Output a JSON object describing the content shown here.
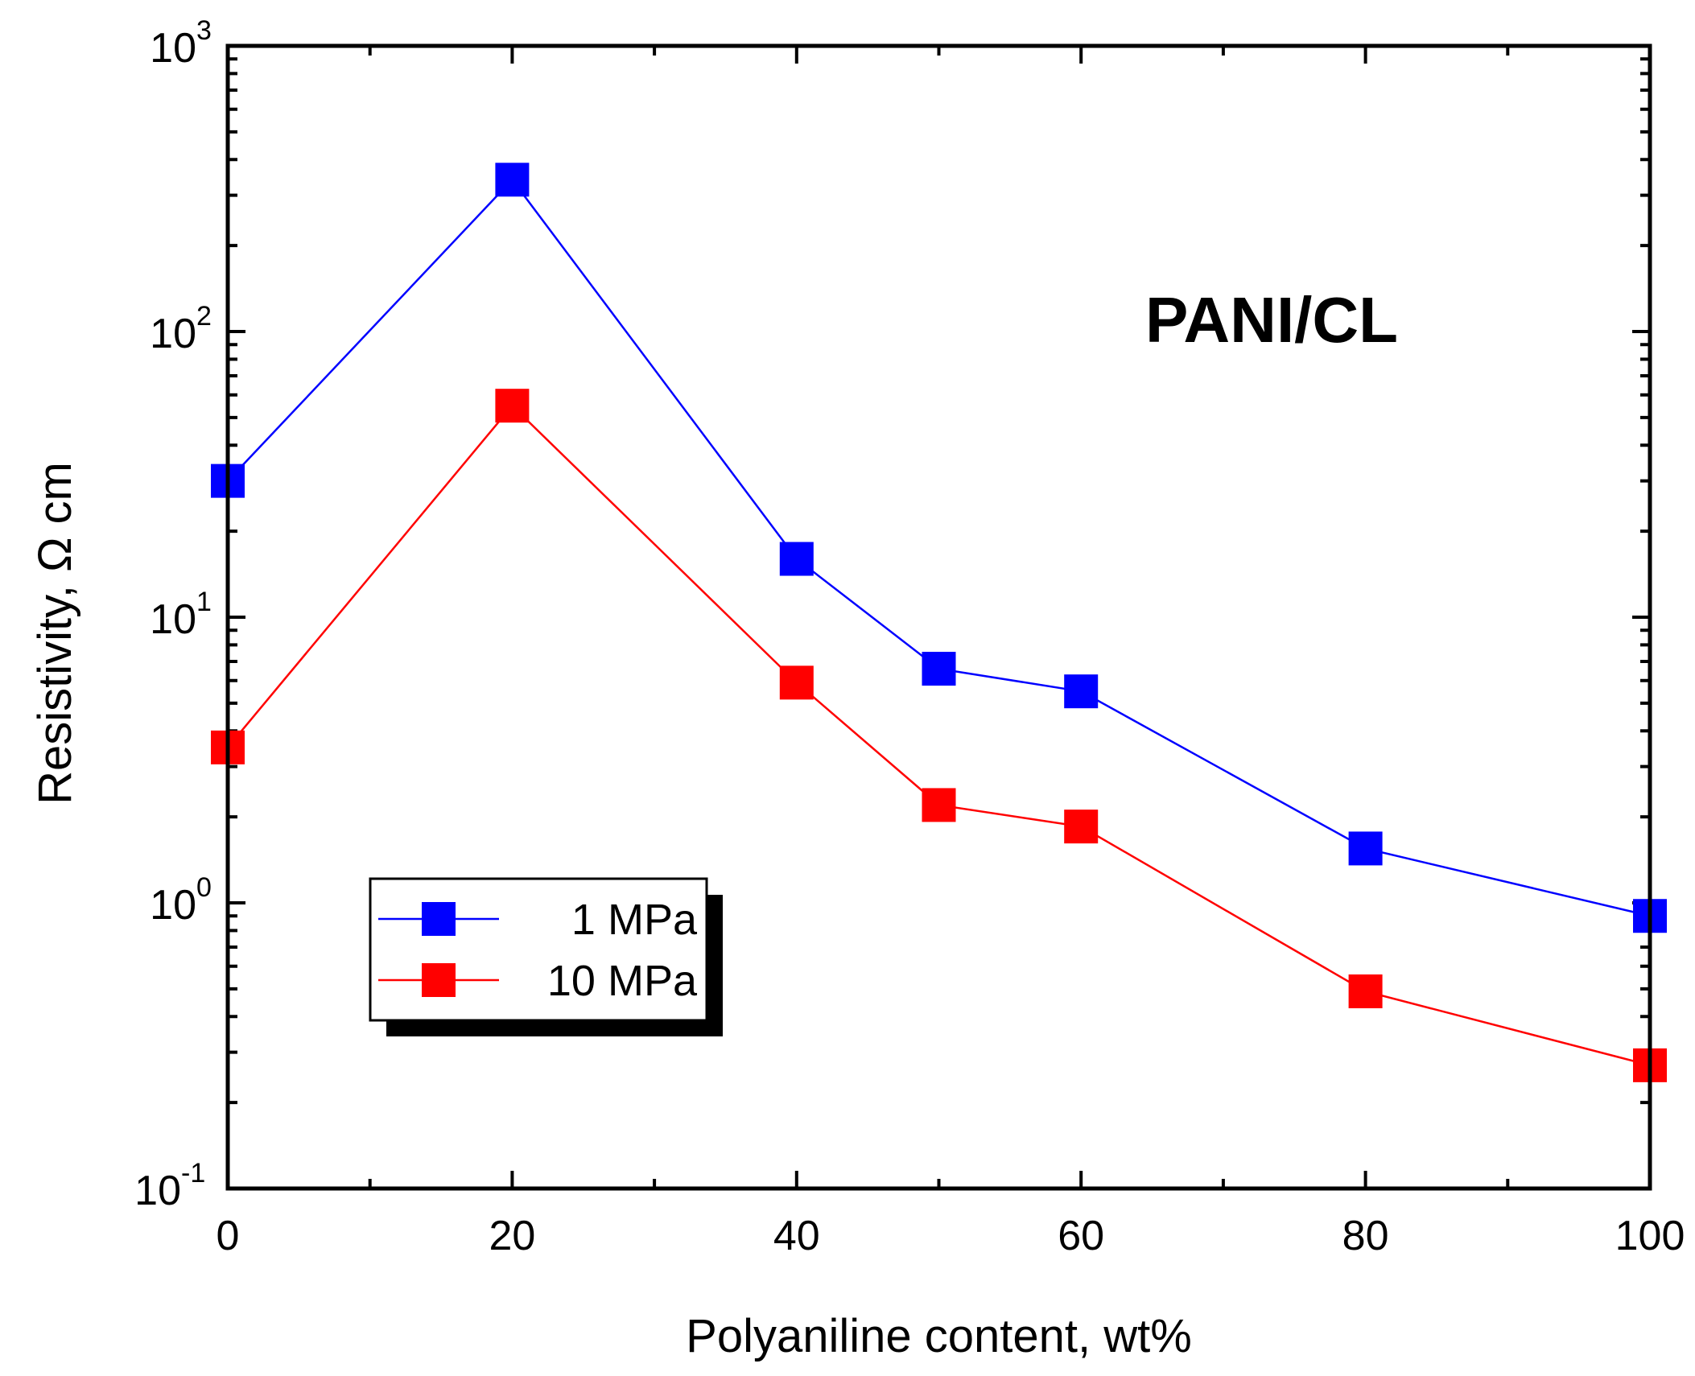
{
  "chart_data": {
    "type": "line",
    "title": "",
    "annotation": "PANI/CL",
    "xlabel": "Polyaniline content, wt%",
    "ylabel": "Resistivity, Ω cm",
    "xlim": [
      0,
      100
    ],
    "ylim": [
      0.1,
      1000
    ],
    "yscale": "log",
    "x_ticks": [
      0,
      20,
      40,
      60,
      80,
      100
    ],
    "x_tick_labels": [
      "0",
      "20",
      "40",
      "60",
      "80",
      "100"
    ],
    "y_ticks": [
      {
        "value": 0.1,
        "base": "10",
        "exp": "-1"
      },
      {
        "value": 1,
        "base": "10",
        "exp": "0"
      },
      {
        "value": 10,
        "base": "10",
        "exp": "1"
      },
      {
        "value": 100,
        "base": "10",
        "exp": "2"
      },
      {
        "value": 1000,
        "base": "10",
        "exp": "3"
      }
    ],
    "legend_position": "bottom-left",
    "series": [
      {
        "name": "1 MPa",
        "color": "#0000ff",
        "x": [
          0,
          20,
          40,
          50,
          60,
          80,
          100
        ],
        "y": [
          30,
          340,
          16,
          6.6,
          5.5,
          1.55,
          0.9
        ]
      },
      {
        "name": "10 MPa",
        "color": "#ff0000",
        "x": [
          0,
          20,
          40,
          50,
          60,
          80,
          100
        ],
        "y": [
          3.5,
          55,
          5.9,
          2.2,
          1.85,
          0.49,
          0.27
        ]
      }
    ]
  }
}
